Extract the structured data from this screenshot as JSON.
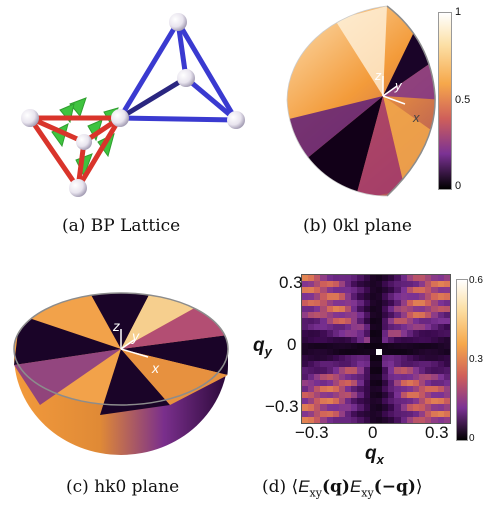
{
  "captions": {
    "a": "(a) BP Lattice",
    "b": "(b) 0kl plane",
    "c": "(c) hk0 plane",
    "d": "(d) ⟨E_xy(q)E_xy(−q)⟩"
  },
  "caption_d_parts": {
    "prefix": "(d) ⟨",
    "E1": "E",
    "sub1": "xy",
    "q1": "(q)",
    "E2": "E",
    "sub2": "xy",
    "q2": "(−q)",
    "suffix": "⟩"
  },
  "panel_b": {
    "axes": {
      "x": "x",
      "y": "y",
      "z": "z"
    },
    "colorbar": {
      "ticks": [
        "1",
        "0.5",
        "0"
      ]
    }
  },
  "panel_c": {
    "axes": {
      "x": "x",
      "y": "y",
      "z": "z"
    }
  },
  "panel_d": {
    "xlabel_base": "q",
    "xlabel_sub": "x",
    "ylabel_base": "q",
    "ylabel_sub": "y",
    "xticks": [
      "−0.3",
      "0",
      "0.3"
    ],
    "yticks": [
      "0.3",
      "0",
      "−0.3"
    ],
    "colorbar": {
      "ticks": [
        "0.6",
        "0.3",
        "0"
      ]
    }
  },
  "colors": {
    "lattice_red": "#d9342b",
    "lattice_blue": "#3a3ad0",
    "lattice_green": "#3fc33f",
    "node": "#f2f0f5",
    "cmap_low": "#000000",
    "cmap_mid": "#7b3294",
    "cmap_high": "#ffffff"
  }
}
